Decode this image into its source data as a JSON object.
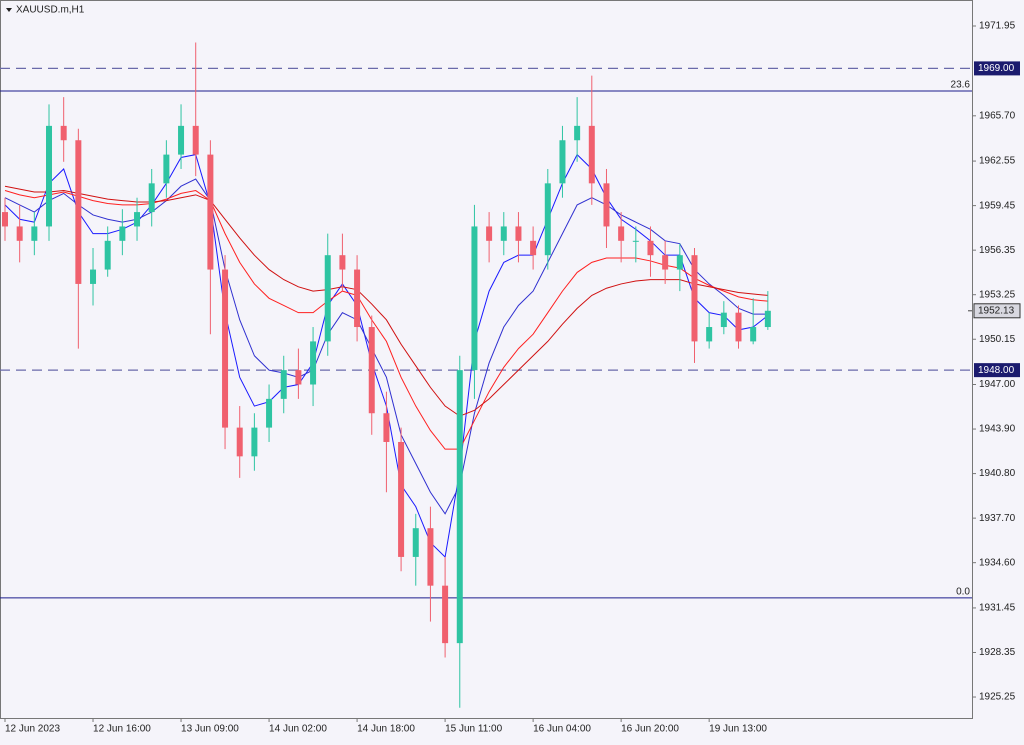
{
  "chart_data": {
    "type": "candlestick",
    "title": "XAUUSD.m,H1",
    "categories": [
      "12 Jun 2023",
      null,
      null,
      null,
      null,
      null,
      "12 Jun 16:00",
      null,
      null,
      null,
      null,
      null,
      "13 Jun 09:00",
      null,
      null,
      null,
      null,
      null,
      "14 Jun 02:00",
      null,
      null,
      null,
      null,
      null,
      "14 Jun 18:00",
      null,
      null,
      null,
      null,
      null,
      "15 Jun 11:00",
      null,
      null,
      null,
      null,
      null,
      "16 Jun 04:00",
      null,
      null,
      null,
      null,
      null,
      "16 Jun 20:00",
      null,
      null,
      null,
      null,
      null,
      "19 Jun 13:00",
      null,
      null,
      null,
      null
    ],
    "open": [
      1959,
      1958,
      1957,
      1958,
      1965,
      1964,
      1954,
      1955,
      1957,
      1958,
      1959,
      1961,
      1963,
      1965,
      1963,
      1955,
      1944,
      1942,
      1944,
      1946,
      1948,
      1947,
      1950,
      1956,
      1955,
      1951,
      1945,
      1943,
      1935,
      1937,
      1933,
      1929,
      1948,
      1958,
      1957,
      1958,
      1957,
      1956,
      1961,
      1964,
      1965,
      1961,
      1958,
      1957,
      1957,
      1956,
      1955,
      1956,
      1950,
      1951,
      1952,
      1950,
      1951
    ],
    "high": [
      1960,
      1959.5,
      1959,
      1966.5,
      1967,
      1964.8,
      1956.5,
      1958,
      1959.2,
      1960,
      1962,
      1964,
      1966.5,
      1970.8,
      1964,
      1956,
      1945.5,
      1945,
      1947,
      1949,
      1949.5,
      1951,
      1957.5,
      1957.5,
      1956,
      1951.8,
      1946.5,
      1944,
      1938,
      1938.5,
      1935,
      1949,
      1959.5,
      1959,
      1959,
      1959,
      1958,
      1962,
      1965,
      1967,
      1968.5,
      1962,
      1959,
      1958,
      1958,
      1957,
      1956.8,
      1956.5,
      1952,
      1952.8,
      1952.5,
      1953,
      1953.5
    ],
    "low": [
      1957,
      1955.5,
      1956,
      1957,
      1962.5,
      1949.5,
      1952.5,
      1954.5,
      1956,
      1957,
      1958,
      1960,
      1962,
      1961.5,
      1950.5,
      1942.5,
      1940.5,
      1941,
      1943,
      1945,
      1946,
      1945.5,
      1949,
      1953.5,
      1950,
      1943.5,
      1939.5,
      1934,
      1933,
      1930.5,
      1928,
      1924.5,
      1946,
      1955.5,
      1956,
      1955.5,
      1955,
      1955,
      1960,
      1962.5,
      1959.5,
      1956.5,
      1955.5,
      1955.5,
      1954.5,
      1954,
      1953.5,
      1948.5,
      1949.5,
      1950.5,
      1949.5,
      1949.8,
      1950.8
    ],
    "close": [
      1958,
      1957,
      1958,
      1965,
      1964,
      1954,
      1955,
      1957,
      1958,
      1959,
      1961,
      1963,
      1965,
      1963,
      1955,
      1944,
      1942,
      1944,
      1946,
      1948,
      1947,
      1950,
      1956,
      1955,
      1951,
      1945,
      1943,
      1935,
      1937,
      1933,
      1929,
      1948,
      1958,
      1957,
      1958,
      1957,
      1956,
      1961,
      1964,
      1965,
      1961,
      1958,
      1957,
      1957,
      1956,
      1955,
      1956,
      1950,
      1951,
      1952,
      1950,
      1951,
      1952.13
    ],
    "up_color": "#2ec4a2",
    "down_color": "#f0606e",
    "series": [
      {
        "color": "#1a1aff",
        "values": [
          1959.5,
          1958.5,
          1958.3,
          1961,
          1962,
          1959,
          1957.5,
          1957.5,
          1957.8,
          1958.3,
          1959.5,
          1961,
          1962.8,
          1963,
          1959.5,
          1952,
          1947.5,
          1945.5,
          1945.8,
          1946.8,
          1947,
          1948.5,
          1952.5,
          1954,
          1952.5,
          1948.5,
          1945.5,
          1940,
          1938.5,
          1936,
          1935,
          1941,
          1950,
          1953.5,
          1955.5,
          1956,
          1956,
          1958.5,
          1961,
          1963,
          1962,
          1960,
          1958.5,
          1957.8,
          1957,
          1956,
          1956,
          1953,
          1952,
          1951.8,
          1950.8,
          1951,
          1951.8
        ]
      },
      {
        "color": "#3030d0",
        "values": [
          1960,
          1959.5,
          1959,
          1959.8,
          1960.3,
          1959.5,
          1958.8,
          1958.5,
          1958.3,
          1958.5,
          1959,
          1959.8,
          1960.8,
          1961.3,
          1959.8,
          1955,
          1951.5,
          1949,
          1948,
          1947.8,
          1947.5,
          1948,
          1950.5,
          1952,
          1951.5,
          1949.5,
          1947.5,
          1943.5,
          1941.5,
          1939.5,
          1938,
          1940,
          1945,
          1948.5,
          1951,
          1952.5,
          1953.5,
          1955.5,
          1957.5,
          1959.5,
          1960,
          1959.5,
          1958.8,
          1958.3,
          1957.8,
          1957,
          1956.8,
          1955,
          1954,
          1953.2,
          1952.3,
          1951.9,
          1951.9
        ]
      },
      {
        "color": "#ff2020",
        "values": [
          1960.5,
          1960.2,
          1960,
          1960.2,
          1960.4,
          1960.1,
          1959.8,
          1959.6,
          1959.5,
          1959.5,
          1959.6,
          1959.9,
          1960.3,
          1960.5,
          1959.8,
          1957.5,
          1955.5,
          1954,
          1953,
          1952.5,
          1952,
          1952,
          1952.8,
          1953.5,
          1953.2,
          1951.5,
          1950,
          1947.5,
          1945.5,
          1943.8,
          1942.5,
          1942.5,
          1944.5,
          1946.5,
          1948.2,
          1949.5,
          1950.5,
          1952,
          1953.5,
          1954.8,
          1955.5,
          1955.8,
          1955.8,
          1955.8,
          1955.6,
          1955.3,
          1955.1,
          1954.4,
          1953.9,
          1953.5,
          1953.1,
          1952.9,
          1952.8
        ]
      },
      {
        "color": "#d01010",
        "values": [
          1960.8,
          1960.6,
          1960.4,
          1960.4,
          1960.5,
          1960.3,
          1960.1,
          1959.9,
          1959.8,
          1959.7,
          1959.7,
          1959.8,
          1960,
          1960.2,
          1959.8,
          1958.5,
          1957.2,
          1956,
          1955,
          1954.3,
          1953.8,
          1953.5,
          1953.6,
          1953.8,
          1953.6,
          1952.6,
          1951.5,
          1949.8,
          1948.3,
          1946.8,
          1945.5,
          1944.8,
          1945.2,
          1946,
          1947,
          1948,
          1949,
          1950,
          1951.2,
          1952.3,
          1953.2,
          1953.7,
          1954,
          1954.2,
          1954.3,
          1954.3,
          1954.3,
          1954,
          1953.8,
          1953.6,
          1953.4,
          1953.3,
          1953.2
        ]
      }
    ],
    "ylim": [
      1923.79,
      1973.76
    ],
    "yticks": [
      1971.95,
      {
        "value": 1965.7,
        "label": "1965.70"
      },
      1962.55,
      1959.45,
      1956.35,
      1953.25,
      1950.15,
      {
        "value": 1947,
        "label": "1947.00"
      },
      {
        "value": 1943.9,
        "label": "1943.90"
      },
      {
        "value": 1940.8,
        "label": "1940.80"
      },
      {
        "value": 1937.7,
        "label": "1937.70"
      },
      {
        "value": 1934.6,
        "label": "1934.60"
      },
      1931.45,
      1928.35,
      1925.25
    ],
    "hlines": [
      {
        "value": 1969,
        "label": "1969.00"
      },
      {
        "value": 1948,
        "label": "1948.00"
      }
    ],
    "levels": [
      {
        "price": 1967.43,
        "label": "23.6"
      },
      {
        "price": 1932.15,
        "label": "0.0"
      }
    ],
    "last_price": 1952.13
  }
}
